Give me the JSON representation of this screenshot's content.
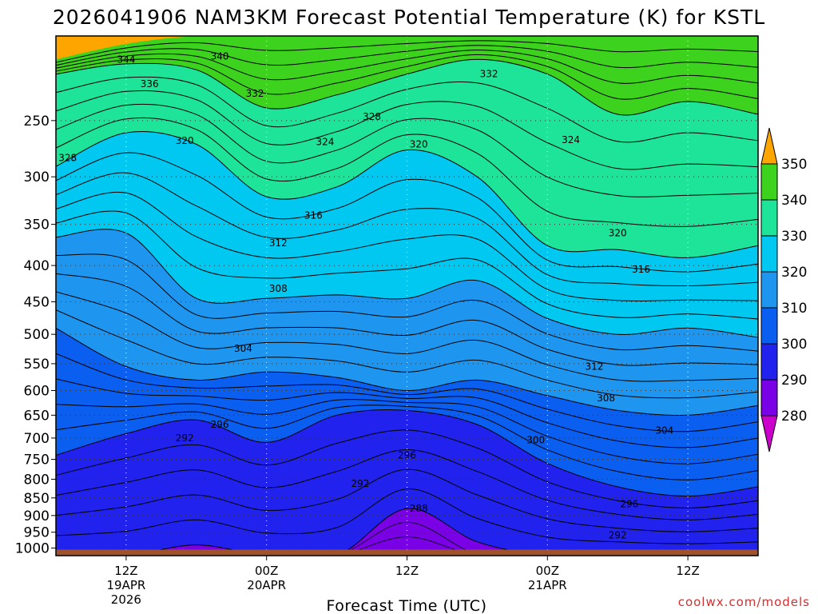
{
  "chart_data": {
    "type": "heatmap",
    "title": "2026041906 NAM3KM Forecast Potential Temperature (K) for KSTL",
    "xlabel": "Forecast Time (UTC)",
    "ylabel": "",
    "credit": "coolwx.com/models",
    "y_axis": {
      "unit": "hPa",
      "inverted": true,
      "range": [
        1025,
        190
      ],
      "ticks": [
        "250",
        "300",
        "350",
        "400",
        "450",
        "500",
        "550",
        "600",
        "650",
        "700",
        "750",
        "800",
        "850",
        "900",
        "950",
        "1000"
      ]
    },
    "x_axis": {
      "unit": "forecast hour",
      "range": [
        0,
        60
      ],
      "ticks": [
        {
          "hour": 6,
          "line1": "12Z",
          "line2": "19APR",
          "line3": "2026"
        },
        {
          "hour": 18,
          "line1": "00Z",
          "line2": "20APR",
          "line3": ""
        },
        {
          "hour": 30,
          "line1": "12Z",
          "line2": "",
          "line3": ""
        },
        {
          "hour": 42,
          "line1": "00Z",
          "line2": "21APR",
          "line3": ""
        },
        {
          "hour": 54,
          "line1": "12Z",
          "line2": "",
          "line3": ""
        }
      ]
    },
    "colorbar": {
      "levels": [
        "280",
        "290",
        "300",
        "310",
        "320",
        "330",
        "340",
        "350"
      ],
      "colors": [
        "#7a00e6",
        "#2222ee",
        "#0a5ef0",
        "#1e96f0",
        "#00c8f0",
        "#1ee49a",
        "#3cd21e",
        "#ffff00",
        "#ffa500"
      ],
      "under_color": "#cc00cc",
      "over_color": "#ffa500"
    },
    "hours": [
      0,
      6,
      12,
      18,
      24,
      30,
      36,
      42,
      48,
      54,
      60
    ],
    "series": [
      {
        "name": "290",
        "values": [
          1025,
          1025,
          990,
          1025,
          1025,
          880,
          980,
          1025,
          1025,
          1025,
          1025
        ]
      },
      {
        "name": "300",
        "values": [
          740,
          690,
          660,
          710,
          650,
          640,
          670,
          760,
          820,
          845,
          820
        ]
      },
      {
        "name": "310",
        "values": [
          490,
          555,
          580,
          565,
          575,
          600,
          580,
          610,
          640,
          650,
          630
        ]
      },
      {
        "name": "320",
        "values": [
          365,
          360,
          445,
          445,
          440,
          445,
          420,
          475,
          500,
          490,
          505
        ]
      },
      {
        "name": "330",
        "values": [
          290,
          260,
          270,
          320,
          310,
          275,
          300,
          375,
          380,
          390,
          375
        ]
      },
      {
        "name": "340",
        "values": [
          215,
          208,
          212,
          240,
          230,
          215,
          205,
          215,
          245,
          235,
          245
        ]
      },
      {
        "name": "350",
        "values": [
          205,
          195,
          190,
          190,
          190,
          190,
          190,
          190,
          190,
          190,
          190
        ]
      }
    ],
    "contour_labels": [
      {
        "text": "344",
        "hour": 6,
        "p": 205
      },
      {
        "text": "340",
        "hour": 14,
        "p": 203
      },
      {
        "text": "336",
        "hour": 8,
        "p": 222
      },
      {
        "text": "332",
        "hour": 17,
        "p": 229
      },
      {
        "text": "332",
        "hour": 37,
        "p": 215
      },
      {
        "text": "328",
        "hour": 27,
        "p": 247
      },
      {
        "text": "328",
        "hour": 1,
        "p": 282
      },
      {
        "text": "324",
        "hour": 23,
        "p": 268
      },
      {
        "text": "324",
        "hour": 44,
        "p": 266
      },
      {
        "text": "320",
        "hour": 11,
        "p": 267
      },
      {
        "text": "320",
        "hour": 31,
        "p": 270
      },
      {
        "text": "320",
        "hour": 48,
        "p": 360
      },
      {
        "text": "316",
        "hour": 22,
        "p": 340
      },
      {
        "text": "316",
        "hour": 50,
        "p": 405
      },
      {
        "text": "312",
        "hour": 19,
        "p": 372
      },
      {
        "text": "312",
        "hour": 46,
        "p": 555
      },
      {
        "text": "308",
        "hour": 19,
        "p": 431
      },
      {
        "text": "308",
        "hour": 47,
        "p": 615
      },
      {
        "text": "304",
        "hour": 16,
        "p": 524
      },
      {
        "text": "304",
        "hour": 52,
        "p": 683
      },
      {
        "text": "300",
        "hour": 41,
        "p": 705
      },
      {
        "text": "296",
        "hour": 14,
        "p": 670
      },
      {
        "text": "296",
        "hour": 30,
        "p": 740
      },
      {
        "text": "296",
        "hour": 49,
        "p": 867
      },
      {
        "text": "292",
        "hour": 11,
        "p": 700
      },
      {
        "text": "292",
        "hour": 26,
        "p": 812
      },
      {
        "text": "292",
        "hour": 48,
        "p": 960
      },
      {
        "text": "288",
        "hour": 31,
        "p": 880
      }
    ]
  }
}
